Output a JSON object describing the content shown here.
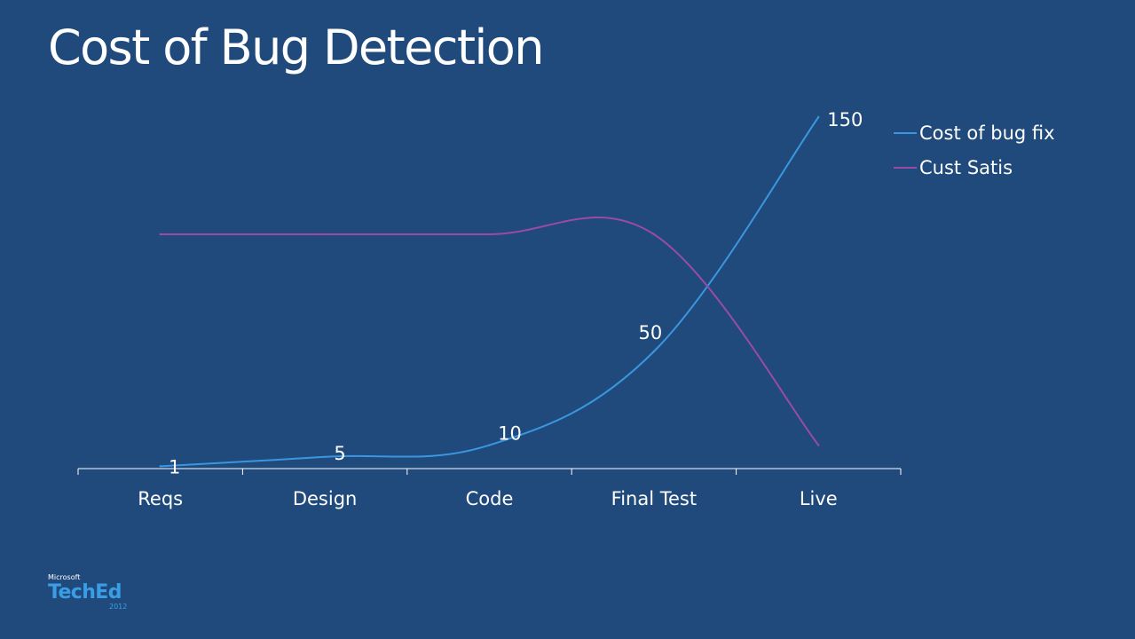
{
  "slide": {
    "title": "Cost of Bug Detection"
  },
  "logo": {
    "brand_small": "Microsoft",
    "brand_main": "TechEd",
    "year": "2012"
  },
  "chart_data": {
    "type": "line",
    "categories": [
      "Reqs",
      "Design",
      "Code",
      "Final Test",
      "Live"
    ],
    "series": [
      {
        "name": "Cost of bug fix",
        "values": [
          1,
          5,
          10,
          50,
          150
        ],
        "color": "#3a96e0",
        "data_labels": [
          "1",
          "5",
          "10",
          "50",
          "150"
        ]
      },
      {
        "name": "Cust Satis",
        "values": [
          100,
          100,
          100,
          100,
          10
        ],
        "color": "#9a4aa8",
        "data_labels": []
      }
    ],
    "ylim": [
      0,
      150
    ],
    "xlabel": "",
    "ylabel": "",
    "grid": false,
    "legend_position": "right",
    "axis_color": "#ffffff"
  }
}
